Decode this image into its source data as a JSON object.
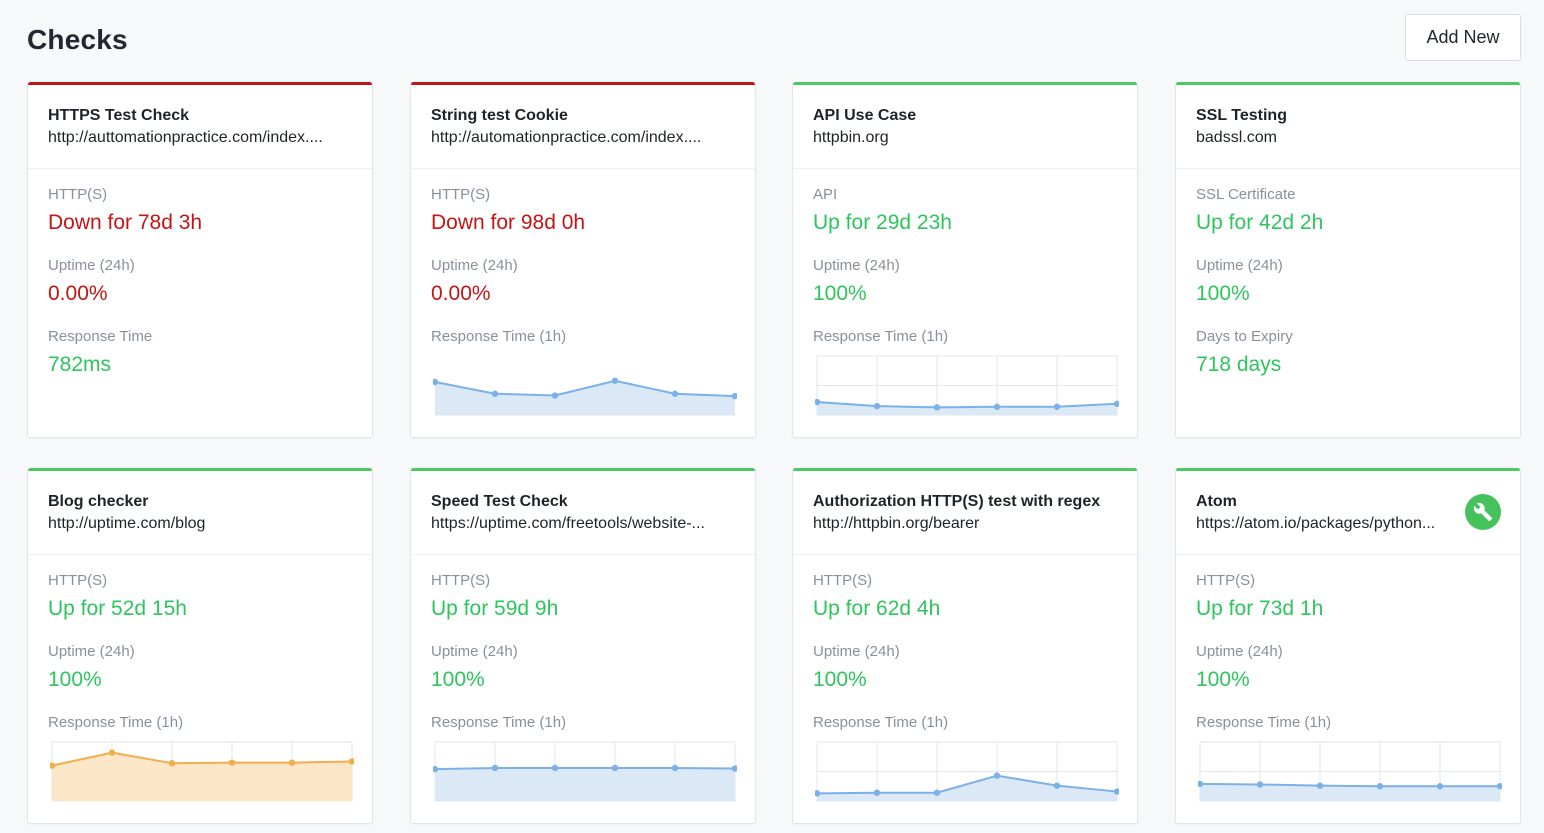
{
  "header": {
    "title": "Checks",
    "add_label": "Add New"
  },
  "colors": {
    "down": "#c41515",
    "up": "#2ec55c",
    "chart_blue_line": "#7cb1e8",
    "chart_blue_fill": "#dbe8f6",
    "chart_orange_line": "#f2ad4e",
    "chart_orange_fill": "#fbe6c8"
  },
  "checks": [
    {
      "name": "HTTPS Test Check",
      "url": "http://auttomationpractice.com/index....",
      "state": "down",
      "type_label": "HTTP(S)",
      "status": "Down for 78d 3h",
      "uptime_label": "Uptime (24h)",
      "uptime": "0.00%",
      "metric_label": "Response Time",
      "metric_value": "782ms",
      "chart": null
    },
    {
      "name": "String test Cookie",
      "url": "http://automationpractice.com/index....",
      "state": "down",
      "type_label": "HTTP(S)",
      "status": "Down for 98d 0h",
      "uptime_label": "Uptime (24h)",
      "uptime": "0.00%",
      "metric_label": "Response Time (1h)",
      "metric_value": "",
      "chart": {
        "color": "blue",
        "grid": false,
        "values": [
          0.56,
          0.36,
          0.33,
          0.58,
          0.36,
          0.32
        ]
      }
    },
    {
      "name": "API Use Case",
      "url": "httpbin.org",
      "state": "up",
      "type_label": "API",
      "status": "Up for 29d 23h",
      "uptime_label": "Uptime (24h)",
      "uptime": "100%",
      "metric_label": "Response Time (1h)",
      "metric_value": "",
      "chart": {
        "color": "blue",
        "grid": true,
        "values": [
          0.22,
          0.15,
          0.13,
          0.14,
          0.14,
          0.19
        ]
      }
    },
    {
      "name": "SSL Testing",
      "url": "badssl.com",
      "state": "up",
      "type_label": "SSL Certificate",
      "status": "Up for 42d 2h",
      "uptime_label": "Uptime (24h)",
      "uptime": "100%",
      "metric_label": "Days to Expiry",
      "metric_value": "718 days",
      "chart": null
    },
    {
      "name": "Blog checker",
      "url": "http://uptime.com/blog",
      "state": "up",
      "type_label": "HTTP(S)",
      "status": "Up for 52d 15h",
      "uptime_label": "Uptime (24h)",
      "uptime": "100%",
      "metric_label": "Response Time (1h)",
      "metric_value": "",
      "chart": {
        "color": "orange",
        "grid": true,
        "values": [
          0.6,
          0.82,
          0.64,
          0.65,
          0.65,
          0.67
        ]
      }
    },
    {
      "name": "Speed Test Check",
      "url": "https://uptime.com/freetools/website-...",
      "state": "up",
      "type_label": "HTTP(S)",
      "status": "Up for 59d 9h",
      "uptime_label": "Uptime (24h)",
      "uptime": "100%",
      "metric_label": "Response Time (1h)",
      "metric_value": "",
      "chart": {
        "color": "blue",
        "grid": true,
        "values": [
          0.54,
          0.56,
          0.56,
          0.56,
          0.56,
          0.55
        ]
      }
    },
    {
      "name": "Authorization HTTP(S) test with regex",
      "url": "http://httpbin.org/bearer",
      "state": "up",
      "type_label": "HTTP(S)",
      "status": "Up for 62d 4h",
      "uptime_label": "Uptime (24h)",
      "uptime": "100%",
      "metric_label": "Response Time (1h)",
      "metric_value": "",
      "chart": {
        "color": "blue",
        "grid": true,
        "values": [
          0.13,
          0.14,
          0.14,
          0.43,
          0.26,
          0.16
        ]
      }
    },
    {
      "name": "Atom",
      "url": "https://atom.io/packages/python...",
      "state": "up",
      "type_label": "HTTP(S)",
      "status": "Up for 73d 1h",
      "uptime_label": "Uptime (24h)",
      "uptime": "100%",
      "metric_label": "Response Time (1h)",
      "metric_value": "",
      "chart": {
        "color": "blue",
        "grid": true,
        "values": [
          0.29,
          0.28,
          0.26,
          0.25,
          0.25,
          0.25
        ]
      },
      "icon": "wrench-icon"
    }
  ]
}
